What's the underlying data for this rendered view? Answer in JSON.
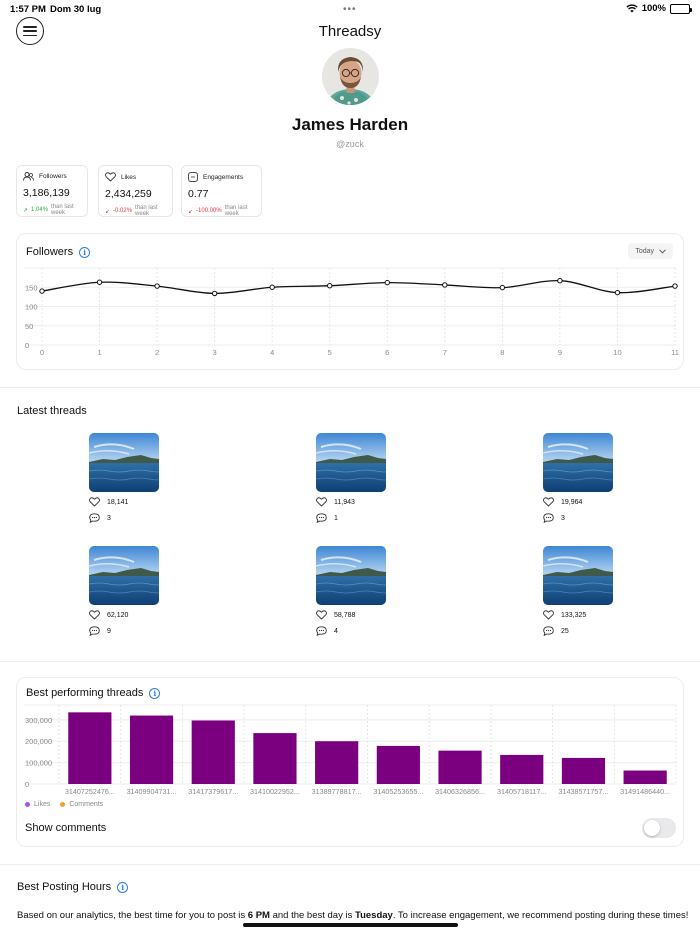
{
  "status_bar": {
    "time": "1:57 PM",
    "date": "Dom 30 lug",
    "battery": "100%"
  },
  "header": {
    "title": "Threadsy"
  },
  "profile": {
    "name": "James Harden",
    "handle": "@zuck"
  },
  "stats": [
    {
      "label": "Followers",
      "icon": "users-icon",
      "value": "3,186,139",
      "change": "1.04%",
      "direction": "up",
      "suffix": "than last week"
    },
    {
      "label": "Likes",
      "icon": "heart-icon",
      "value": "2,434,259",
      "change": "-0.02%",
      "direction": "down",
      "suffix": "than last week"
    },
    {
      "label": "Engagements",
      "icon": "chat-bubble-icon",
      "value": "0.77",
      "change": "-100.00%",
      "direction": "down",
      "suffix": "than last week"
    }
  ],
  "followers_panel": {
    "title": "Followers",
    "dropdown": "Today"
  },
  "followers_chart": {
    "type": "line",
    "x": [
      0,
      1,
      2,
      3,
      4,
      5,
      6,
      7,
      8,
      9,
      10,
      11
    ],
    "values": [
      140,
      163,
      153,
      134,
      150,
      154,
      162,
      156,
      149,
      167,
      136,
      153
    ],
    "yticks": [
      "0",
      "50",
      "100",
      "150"
    ],
    "ylim": [
      0,
      200
    ]
  },
  "latest_threads": {
    "title": "Latest threads",
    "items": [
      {
        "likes": "18,141",
        "comments": "3"
      },
      {
        "likes": "11,943",
        "comments": "1"
      },
      {
        "likes": "19,964",
        "comments": "3"
      },
      {
        "likes": "62,120",
        "comments": "9"
      },
      {
        "likes": "58,788",
        "comments": "4"
      },
      {
        "likes": "133,325",
        "comments": "25"
      }
    ]
  },
  "best_threads_panel": {
    "title": "Best performing threads",
    "legend": [
      {
        "label": "Likes",
        "color": "#a94ee6"
      },
      {
        "label": "Comments",
        "color": "#f0a030"
      }
    ],
    "toggle_label": "Show comments"
  },
  "chart_data": {
    "type": "bar",
    "categories": [
      "31407252476...",
      "31409904731...",
      "31417379617...",
      "31410022952...",
      "31389778817...",
      "31405253655...",
      "31406326856...",
      "31405718117...",
      "31438571757...",
      "31491486440..."
    ],
    "series": [
      {
        "name": "Likes",
        "values": [
          335000,
          320000,
          297000,
          238000,
          200000,
          178000,
          156000,
          136000,
          122000,
          63000
        ]
      }
    ],
    "yticks": [
      "0",
      "100,000",
      "200,000",
      "300,000"
    ],
    "ylim": [
      0,
      360000
    ],
    "bar_color": "#7b0080",
    "legend": "bottom-left"
  },
  "best_posting": {
    "title": "Best Posting Hours",
    "text_before": "Based on our analytics, the best time for you to post is ",
    "best_time": "6 PM",
    "text_middle": " and the best day is ",
    "best_day": "Tuesday",
    "text_after": ". To increase engagement, we recommend posting during these times!"
  }
}
